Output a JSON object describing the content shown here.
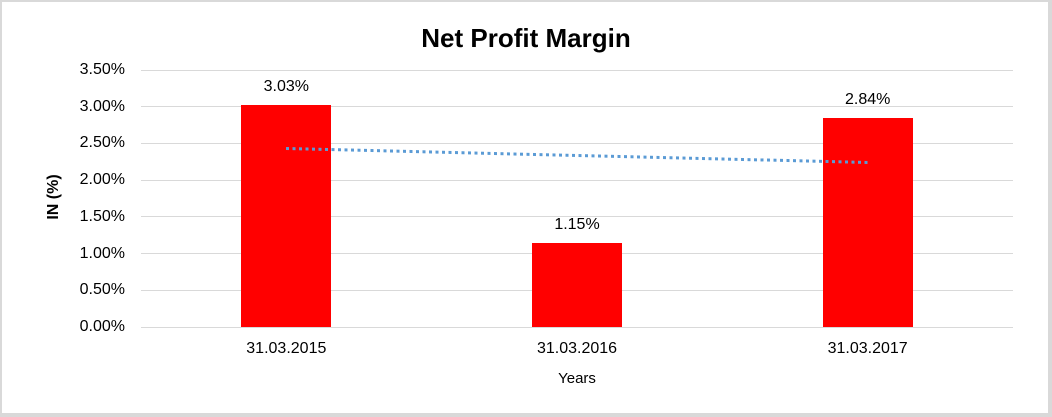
{
  "page": {
    "background": "#FFFFFF",
    "border_color": "#D9D9D9"
  },
  "chart_data": {
    "type": "bar",
    "title": "Net Profit Margin",
    "xlabel": "Years",
    "ylabel": "IN (%)",
    "categories": [
      "31.03.2015",
      "31.03.2016",
      "31.03.2017"
    ],
    "values": [
      3.03,
      1.15,
      2.84
    ],
    "data_labels": [
      "3.03%",
      "1.15%",
      "2.84%"
    ],
    "ylim": [
      0,
      3.5
    ],
    "ytick_step": 0.5,
    "ytick_labels": [
      "0.00%",
      "0.50%",
      "1.00%",
      "1.50%",
      "2.00%",
      "2.50%",
      "3.00%",
      "3.50%"
    ],
    "grid": true,
    "legend": false,
    "gridline_color": "#D9D9D9",
    "bar_color": "#FF0000",
    "text_color": "#000000",
    "trendline": {
      "type": "linear",
      "style": "dotted",
      "color": "#5B9BD5",
      "start_value": 2.435,
      "end_value": 2.245
    }
  }
}
